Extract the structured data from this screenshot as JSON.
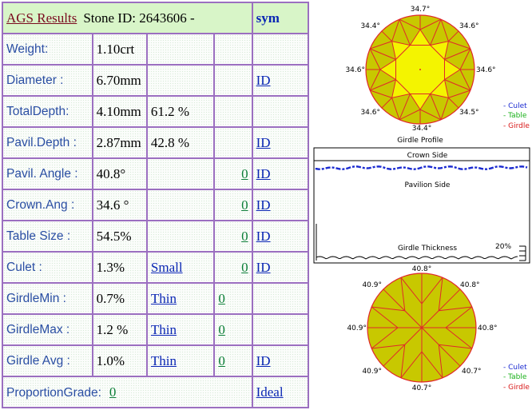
{
  "table": {
    "header": {
      "ags": "AGS  Results",
      "stone": "Stone ID:  2643606 -",
      "sym": "sym"
    },
    "rows": [
      {
        "label": "Weight:",
        "v1": "1.10crt",
        "v2": "",
        "v3": "",
        "v4": ""
      },
      {
        "label": "Diameter :",
        "v1": "6.70mm",
        "v2": "",
        "v3": "",
        "v4": "ID"
      },
      {
        "label": "TotalDepth:",
        "v1": "4.10mm",
        "v2": "61.2 %",
        "v3": "",
        "v4": ""
      },
      {
        "label": "Pavil.Depth :",
        "v1": "2.87mm",
        "v2": "42.8 %",
        "v3": "",
        "v4": "ID"
      },
      {
        "label": "Pavil. Angle :",
        "v1": "40.8°",
        "v2": "",
        "v3": "0",
        "v4": "ID "
      },
      {
        "label": "Crown.Ang :",
        "v1": "34.6 °",
        "v2": "",
        "v3": "0",
        "v4": "ID"
      },
      {
        "label": "Table Size :",
        "v1": "54.5%",
        "v2": "",
        "v3": "0",
        "v4": "ID"
      },
      {
        "label": "Culet :",
        "v1": "1.3%",
        "v2": "Small",
        "v3": "0",
        "v4": "ID"
      },
      {
        "label": "GirdleMin :",
        "v1": "0.7%",
        "v2": "Thin",
        "v3": "0",
        "v4": ""
      },
      {
        "label": "GirdleMax :",
        "v1": "1.2 %",
        "v2": "Thin ",
        "v3": "0",
        "v4": ""
      },
      {
        "label": "Girdle Avg :",
        "v1": "1.0%",
        "v2": "Thin ",
        "v3": "0 ",
        "v4": "ID "
      }
    ],
    "footer": {
      "label": "ProportionGrade:",
      "value": "0",
      "grade": "Ideal "
    }
  },
  "crown": {
    "angles": [
      "34.7°",
      "34.6°",
      "34.6°",
      "34.5°",
      "34.4°",
      "34.6°",
      "34.6°",
      "34.4°"
    ],
    "title": "Girdle Profile"
  },
  "legend": {
    "culet": "- Culet",
    "table": "- Table",
    "girdle": "- Girdle"
  },
  "girdle_profile": {
    "crown_side": "Crown Side",
    "pavilion_side": "Pavilion Side",
    "thickness": "Girdle Thickness",
    "percent": "20%"
  },
  "pavilion": {
    "angles": [
      "40.8°",
      "40.8°",
      "40.8°",
      "40.7°",
      "40.7°",
      "40.9°",
      "40.9°",
      "40.9°"
    ]
  },
  "colors": {
    "border": "#9b6fc0",
    "facet_fill": "#c8c800",
    "table_fill": "#f4f400",
    "facet_line": "#e0282a",
    "legend_culet": "#1a2ad0",
    "legend_table": "#18b018",
    "legend_girdle": "#d81818"
  }
}
